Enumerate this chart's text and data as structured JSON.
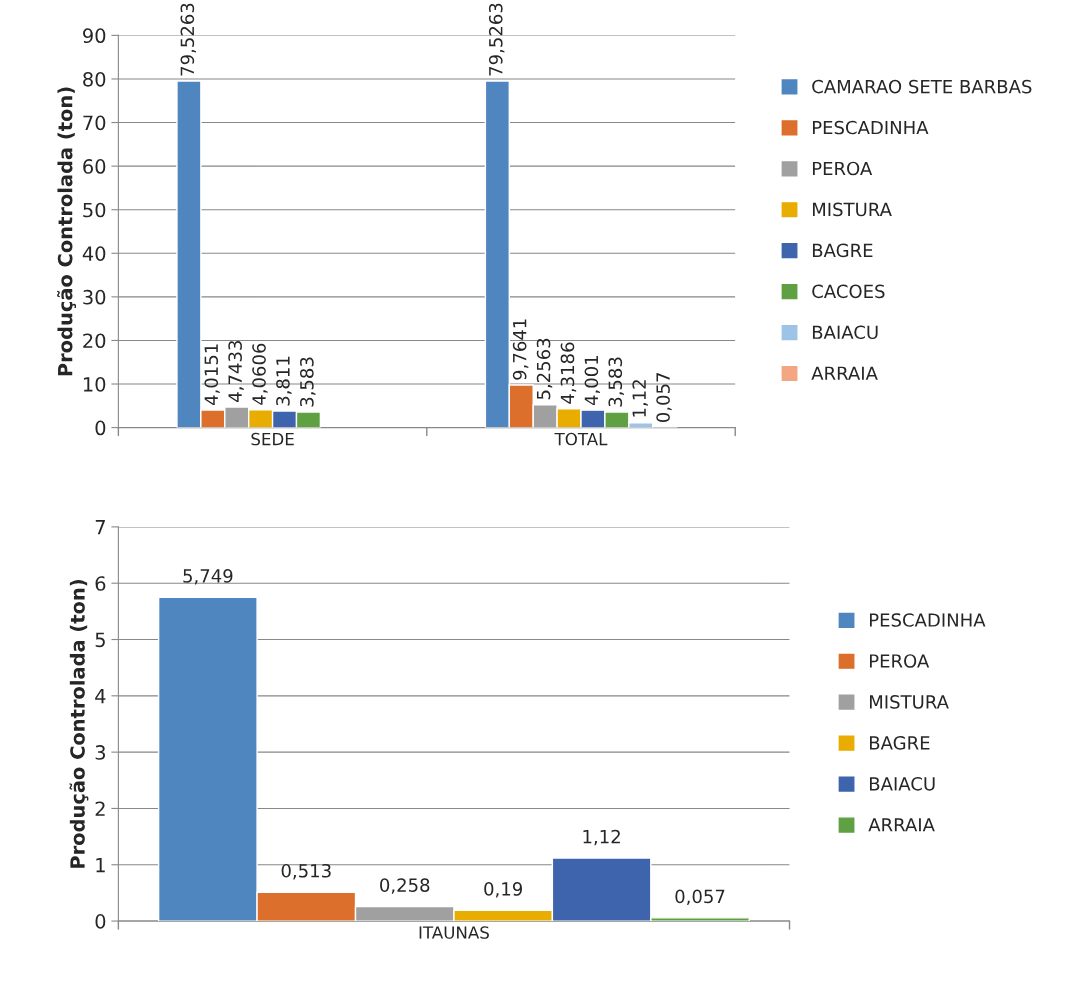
{
  "chart_data": [
    {
      "type": "bar",
      "ylabel": "Produção Controlada (ton)",
      "categories": [
        "SEDE",
        "TOTAL"
      ],
      "ylim": [
        0,
        90
      ],
      "yticks": [
        0,
        10,
        20,
        30,
        40,
        50,
        60,
        70,
        80,
        90
      ],
      "grid": "y",
      "legend": "right",
      "series": [
        {
          "name": "CAMARAO SETE BARBAS",
          "color": "#4f86c0",
          "values": [
            79.5263,
            79.5263
          ],
          "value_labels": [
            "79,5263",
            "79,5263"
          ]
        },
        {
          "name": "PESCADINHA",
          "color": "#db6f2b",
          "values": [
            4.0151,
            9.7641
          ],
          "value_labels": [
            "4,0151",
            "9,7641"
          ]
        },
        {
          "name": "PEROA",
          "color": "#a0a0a0",
          "values": [
            4.7433,
            5.2563
          ],
          "value_labels": [
            "4,7433",
            "5,2563"
          ]
        },
        {
          "name": "MISTURA",
          "color": "#e8ad00",
          "values": [
            4.0606,
            4.3186
          ],
          "value_labels": [
            "4,0606",
            "4,3186"
          ]
        },
        {
          "name": "BAGRE",
          "color": "#3d64ad",
          "values": [
            3.811,
            4.001
          ],
          "value_labels": [
            "3,811",
            "4,001"
          ]
        },
        {
          "name": "CACOES",
          "color": "#5fa043",
          "values": [
            3.583,
            3.583
          ],
          "value_labels": [
            "3,583",
            "3,583"
          ]
        },
        {
          "name": "BAIACU",
          "color": "#9dc3e6",
          "values": [
            null,
            1.12
          ],
          "value_labels": [
            null,
            "1,12"
          ]
        },
        {
          "name": "ARRAIA",
          "color": "#f4a582",
          "values": [
            null,
            0.057
          ],
          "value_labels": [
            null,
            "0,057"
          ]
        }
      ]
    },
    {
      "type": "bar",
      "ylabel": "Produção Controlada (ton)",
      "categories": [
        "ITAUNAS"
      ],
      "ylim": [
        0,
        7
      ],
      "yticks": [
        0,
        1,
        2,
        3,
        4,
        5,
        6,
        7
      ],
      "grid": "y",
      "legend": "right",
      "series": [
        {
          "name": "PESCADINHA",
          "color": "#4f86c0",
          "values": [
            5.749
          ],
          "value_labels": [
            "5,749"
          ]
        },
        {
          "name": "PEROA",
          "color": "#db6f2b",
          "values": [
            0.513
          ],
          "value_labels": [
            "0,513"
          ]
        },
        {
          "name": "MISTURA",
          "color": "#a0a0a0",
          "values": [
            0.258
          ],
          "value_labels": [
            "0,258"
          ]
        },
        {
          "name": "BAGRE",
          "color": "#e8ad00",
          "values": [
            0.19
          ],
          "value_labels": [
            "0,19"
          ]
        },
        {
          "name": "BAIACU",
          "color": "#3d64ad",
          "values": [
            1.12
          ],
          "value_labels": [
            "1,12"
          ]
        },
        {
          "name": "ARRAIA",
          "color": "#5fa043",
          "values": [
            0.057
          ],
          "value_labels": [
            "0,057"
          ]
        }
      ]
    }
  ]
}
